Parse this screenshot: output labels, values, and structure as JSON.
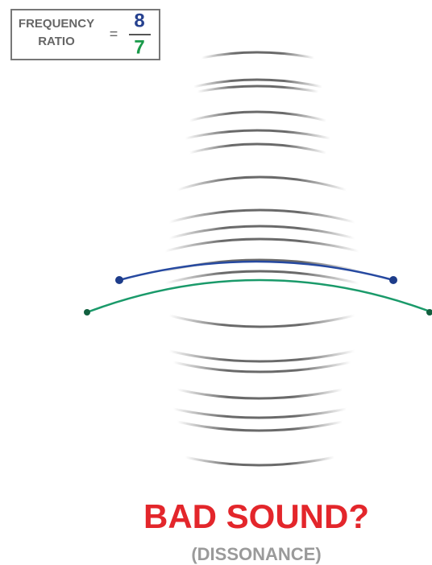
{
  "ratio_box": {
    "label_line1": "FREQUENCY",
    "label_line2": "RATIO",
    "equals": "=",
    "numerator": "8",
    "denominator": "7"
  },
  "caption": {
    "title": "BAD SOUND?",
    "subtitle": "(DISSONANCE)"
  }
}
